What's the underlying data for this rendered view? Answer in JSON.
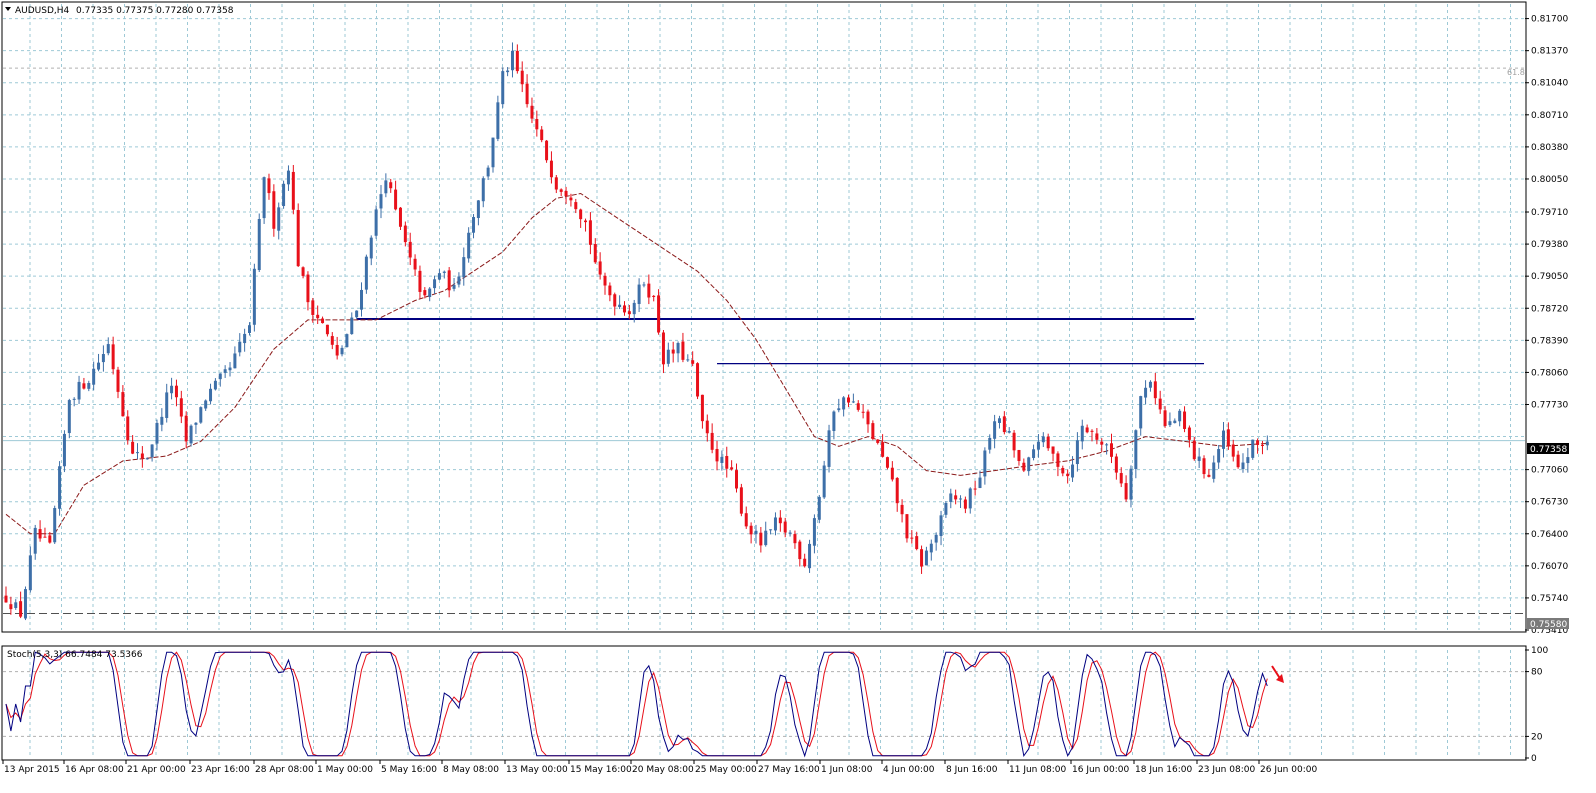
{
  "main_header": {
    "symbol": "AUDUSD,H4",
    "ohlc": "0.77335 0.77375 0.77280 0.77358"
  },
  "stoch_header": {
    "text": "Stoch(5,3,3) 66.7484 73.5366"
  },
  "colors": {
    "bull": "#3d6fa8",
    "bear": "#e8101a",
    "ma": "#8b1a1a",
    "hline": "#000080",
    "grid": "#9ec9d6",
    "stoch_main": "#000080",
    "stoch_signal": "#e8101a",
    "arrow": "#e8101a"
  },
  "price_axis": {
    "labels": [
      "0.81700",
      "0.81370",
      "0.81040",
      "0.80710",
      "0.80380",
      "0.80050",
      "0.79710",
      "0.79380",
      "0.79050",
      "0.78720",
      "0.78390",
      "0.78060",
      "0.77730",
      "0.77060",
      "0.76730",
      "0.76400",
      "0.76070",
      "0.75740",
      "0.75410"
    ],
    "current_price": "0.77358",
    "low_marker": "0.75580",
    "fib_label": "61.8"
  },
  "stoch_axis": {
    "labels": [
      "100",
      "80",
      "20",
      "0"
    ]
  },
  "time_axis": {
    "labels": [
      "13 Apr 2015",
      "16 Apr 08:00",
      "21 Apr 00:00",
      "23 Apr 16:00",
      "28 Apr 08:00",
      "1 May 00:00",
      "5 May 16:00",
      "8 May 08:00",
      "13 May 00:00",
      "15 May 16:00",
      "20 May 08:00",
      "25 May 00:00",
      "27 May 16:00",
      "1 Jun 08:00",
      "4 Jun 00:00",
      "8 Jun 16:00",
      "11 Jun 08:00",
      "16 Jun 00:00",
      "18 Jun 16:00",
      "23 Jun 08:00",
      "26 Jun 00:00"
    ]
  },
  "chart_data": {
    "type": "candlestick",
    "symbol": "AUDUSD",
    "timeframe": "H4",
    "ylim": [
      0.7541,
      0.8185
    ],
    "stoch_ylim": [
      0,
      100
    ],
    "grid": true,
    "anchors": [
      {
        "i": 0,
        "p": 0.7575
      },
      {
        "i": 3,
        "p": 0.7558
      },
      {
        "i": 6,
        "p": 0.764
      },
      {
        "i": 9,
        "p": 0.7625
      },
      {
        "i": 13,
        "p": 0.778
      },
      {
        "i": 17,
        "p": 0.78
      },
      {
        "i": 21,
        "p": 0.7835
      },
      {
        "i": 26,
        "p": 0.772
      },
      {
        "i": 29,
        "p": 0.772
      },
      {
        "i": 34,
        "p": 0.7795
      },
      {
        "i": 37,
        "p": 0.7735
      },
      {
        "i": 41,
        "p": 0.778
      },
      {
        "i": 46,
        "p": 0.781
      },
      {
        "i": 50,
        "p": 0.7855
      },
      {
        "i": 53,
        "p": 0.801
      },
      {
        "i": 55,
        "p": 0.796
      },
      {
        "i": 58,
        "p": 0.802
      },
      {
        "i": 60,
        "p": 0.792
      },
      {
        "i": 62,
        "p": 0.788
      },
      {
        "i": 65,
        "p": 0.7855
      },
      {
        "i": 68,
        "p": 0.782
      },
      {
        "i": 72,
        "p": 0.787
      },
      {
        "i": 75,
        "p": 0.795
      },
      {
        "i": 78,
        "p": 0.801
      },
      {
        "i": 80,
        "p": 0.797
      },
      {
        "i": 83,
        "p": 0.792
      },
      {
        "i": 86,
        "p": 0.788
      },
      {
        "i": 89,
        "p": 0.791
      },
      {
        "i": 92,
        "p": 0.789
      },
      {
        "i": 96,
        "p": 0.797
      },
      {
        "i": 99,
        "p": 0.802
      },
      {
        "i": 102,
        "p": 0.811
      },
      {
        "i": 104,
        "p": 0.813
      },
      {
        "i": 107,
        "p": 0.808
      },
      {
        "i": 110,
        "p": 0.804
      },
      {
        "i": 113,
        "p": 0.8
      },
      {
        "i": 116,
        "p": 0.799
      },
      {
        "i": 119,
        "p": 0.796
      },
      {
        "i": 122,
        "p": 0.79
      },
      {
        "i": 125,
        "p": 0.788
      },
      {
        "i": 128,
        "p": 0.787
      },
      {
        "i": 131,
        "p": 0.79
      },
      {
        "i": 133,
        "p": 0.788
      },
      {
        "i": 135,
        "p": 0.782
      },
      {
        "i": 138,
        "p": 0.783
      },
      {
        "i": 141,
        "p": 0.781
      },
      {
        "i": 143,
        "p": 0.775
      },
      {
        "i": 146,
        "p": 0.772
      },
      {
        "i": 149,
        "p": 0.77
      },
      {
        "i": 152,
        "p": 0.765
      },
      {
        "i": 155,
        "p": 0.763
      },
      {
        "i": 158,
        "p": 0.765
      },
      {
        "i": 161,
        "p": 0.764
      },
      {
        "i": 164,
        "p": 0.761
      },
      {
        "i": 167,
        "p": 0.768
      },
      {
        "i": 170,
        "p": 0.777
      },
      {
        "i": 173,
        "p": 0.778
      },
      {
        "i": 176,
        "p": 0.776
      },
      {
        "i": 179,
        "p": 0.773
      },
      {
        "i": 182,
        "p": 0.769
      },
      {
        "i": 185,
        "p": 0.764
      },
      {
        "i": 188,
        "p": 0.761
      },
      {
        "i": 191,
        "p": 0.764
      },
      {
        "i": 194,
        "p": 0.768
      },
      {
        "i": 197,
        "p": 0.767
      },
      {
        "i": 200,
        "p": 0.77
      },
      {
        "i": 203,
        "p": 0.776
      },
      {
        "i": 206,
        "p": 0.774
      },
      {
        "i": 209,
        "p": 0.77
      },
      {
        "i": 212,
        "p": 0.774
      },
      {
        "i": 215,
        "p": 0.772
      },
      {
        "i": 218,
        "p": 0.77
      },
      {
        "i": 221,
        "p": 0.775
      },
      {
        "i": 224,
        "p": 0.774
      },
      {
        "i": 227,
        "p": 0.772
      },
      {
        "i": 230,
        "p": 0.768
      },
      {
        "i": 233,
        "p": 0.778
      },
      {
        "i": 235,
        "p": 0.78
      },
      {
        "i": 238,
        "p": 0.775
      },
      {
        "i": 241,
        "p": 0.776
      },
      {
        "i": 244,
        "p": 0.772
      },
      {
        "i": 247,
        "p": 0.77
      },
      {
        "i": 250,
        "p": 0.774
      },
      {
        "i": 253,
        "p": 0.7705
      },
      {
        "i": 256,
        "p": 0.773
      },
      {
        "i": 259,
        "p": 0.77358
      }
    ],
    "moving_average_points": [
      {
        "i": 0,
        "p": 0.766
      },
      {
        "i": 5,
        "p": 0.764
      },
      {
        "i": 10,
        "p": 0.764
      },
      {
        "i": 16,
        "p": 0.769
      },
      {
        "i": 24,
        "p": 0.7715
      },
      {
        "i": 33,
        "p": 0.772
      },
      {
        "i": 40,
        "p": 0.7735
      },
      {
        "i": 47,
        "p": 0.777
      },
      {
        "i": 55,
        "p": 0.783
      },
      {
        "i": 62,
        "p": 0.786
      },
      {
        "i": 69,
        "p": 0.786
      },
      {
        "i": 76,
        "p": 0.786
      },
      {
        "i": 84,
        "p": 0.788
      },
      {
        "i": 90,
        "p": 0.789
      },
      {
        "i": 96,
        "p": 0.791
      },
      {
        "i": 102,
        "p": 0.793
      },
      {
        "i": 108,
        "p": 0.7965
      },
      {
        "i": 113,
        "p": 0.7985
      },
      {
        "i": 118,
        "p": 0.799
      },
      {
        "i": 124,
        "p": 0.797
      },
      {
        "i": 130,
        "p": 0.795
      },
      {
        "i": 136,
        "p": 0.793
      },
      {
        "i": 142,
        "p": 0.791
      },
      {
        "i": 148,
        "p": 0.788
      },
      {
        "i": 154,
        "p": 0.784
      },
      {
        "i": 160,
        "p": 0.779
      },
      {
        "i": 166,
        "p": 0.774
      },
      {
        "i": 171,
        "p": 0.773
      },
      {
        "i": 177,
        "p": 0.774
      },
      {
        "i": 183,
        "p": 0.773
      },
      {
        "i": 189,
        "p": 0.7705
      },
      {
        "i": 196,
        "p": 0.77
      },
      {
        "i": 203,
        "p": 0.7705
      },
      {
        "i": 210,
        "p": 0.771
      },
      {
        "i": 218,
        "p": 0.7715
      },
      {
        "i": 226,
        "p": 0.7725
      },
      {
        "i": 234,
        "p": 0.774
      },
      {
        "i": 242,
        "p": 0.7735
      },
      {
        "i": 250,
        "p": 0.773
      },
      {
        "i": 259,
        "p": 0.7733
      }
    ],
    "horizontal_levels": [
      {
        "price": 0.7861,
        "from_index": 72,
        "to_index": 244,
        "width": "thick"
      },
      {
        "price": 0.7815,
        "from_index": 146,
        "to_index": 246,
        "width": "thin"
      }
    ],
    "fib_level": {
      "label": "61.8",
      "price": 0.8119
    },
    "current_price": 0.77358,
    "low_line": 0.7558,
    "stochastic": {
      "params": "5,3,3",
      "main": 66.7484,
      "signal": 73.5366,
      "levels": [
        80,
        20
      ]
    }
  }
}
